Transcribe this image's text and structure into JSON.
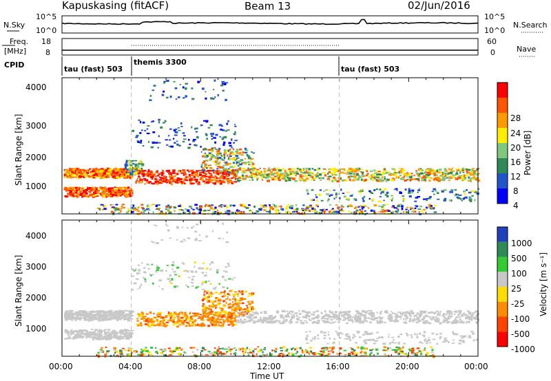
{
  "header": {
    "station": "Kapuskasing (fitACF)",
    "beam": "Beam 13",
    "date": "02/Jun/2016"
  },
  "chart_data": [
    {
      "type": "line",
      "name": "noise-panel",
      "left_label": "N.Sky",
      "right_label": "N.Search",
      "left_ticks": [
        "10^5",
        "10^0"
      ],
      "right_ticks": [
        "10^5",
        "10^0"
      ]
    },
    {
      "type": "line",
      "name": "freq-panel",
      "left_label_1": "Freq.",
      "left_label_2": "[MHz]",
      "right_label": "Nave",
      "left_ticks": [
        "18",
        "8"
      ],
      "right_ticks": [
        "60",
        "0"
      ]
    },
    {
      "type": "table",
      "name": "cpid-panel",
      "label": "CPID",
      "segments": [
        {
          "label": "tau (fast) 503",
          "start": 0,
          "end": 4
        },
        {
          "label": "themis 3300",
          "start": 4,
          "end": 16
        },
        {
          "label": "tau (fast) 503",
          "start": 16,
          "end": 24
        }
      ]
    },
    {
      "type": "heatmap",
      "name": "power-panel",
      "ylabel": "Slant Range [km]",
      "yticks": [
        "4000",
        "3000",
        "2000",
        "1000"
      ],
      "colorbar_label": "Power [dB]",
      "colorbar_ticks": [
        "28",
        "24",
        "20",
        "16",
        "12",
        "8",
        "4"
      ],
      "colors": [
        "#0000ff",
        "#2255cc",
        "#2e8b57",
        "#7fc97f",
        "#ffee00",
        "#ff9900",
        "#ff5500",
        "#ff0000"
      ]
    },
    {
      "type": "heatmap",
      "name": "velocity-panel",
      "ylabel": "Slant Range [km]",
      "yticks": [
        "4000",
        "3000",
        "2000",
        "1000"
      ],
      "colorbar_label": "Velocity [m s⁻¹]",
      "colorbar_ticks": [
        "1000",
        "500",
        "100",
        "25",
        "-25",
        "-100",
        "-500",
        "-1000"
      ],
      "colors": [
        "#1f3fbf",
        "#2e8b57",
        "#33cc33",
        "#c8c8c8",
        "#ffdd00",
        "#ff8c00",
        "#ff4400",
        "#ff0000"
      ]
    }
  ],
  "time_axis": {
    "label": "Time UT",
    "ticks": [
      "00:00",
      "04:00",
      "08:00",
      "12:00",
      "16:00",
      "20:00",
      "00:00"
    ]
  }
}
